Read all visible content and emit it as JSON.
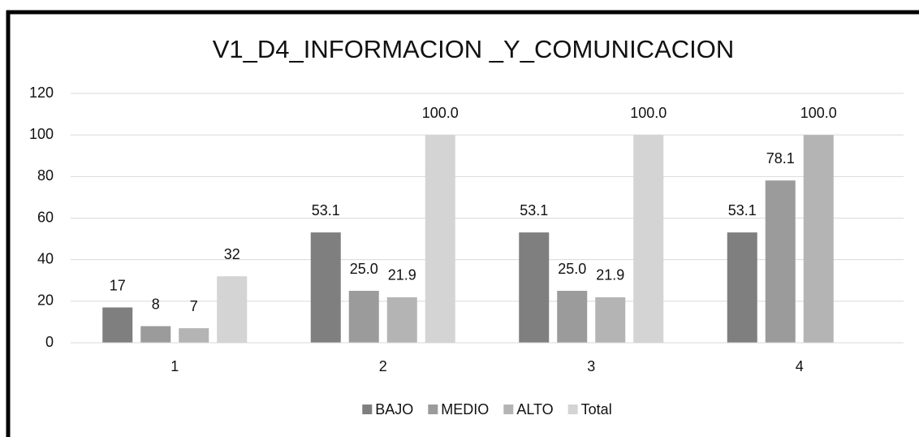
{
  "chart_data": {
    "type": "bar",
    "title": "V1_D4_INFORMACION _Y_COMUNICACION",
    "categories": [
      "1",
      "2",
      "3",
      "4"
    ],
    "series": [
      {
        "name": "BAJO",
        "color": "#7f7f7f",
        "values": [
          17,
          53.1,
          53.1,
          53.1
        ],
        "value_labels": [
          "17",
          "53.1",
          "53.1",
          "53.1"
        ]
      },
      {
        "name": "MEDIO",
        "color": "#9b9b9b",
        "values": [
          8,
          25,
          25,
          78.1
        ],
        "value_labels": [
          "8",
          "25.0",
          "25.0",
          "78.1"
        ]
      },
      {
        "name": "ALTO",
        "color": "#b4b4b4",
        "values": [
          7,
          21.9,
          21.9,
          100
        ],
        "value_labels": [
          "7",
          "21.9",
          "21.9",
          "100.0"
        ]
      },
      {
        "name": "Total",
        "color": "#d4d4d4",
        "values": [
          32,
          100,
          100,
          null
        ],
        "value_labels": [
          "32",
          "100.0",
          "100.0",
          null
        ]
      }
    ],
    "ylim": [
      0,
      120
    ],
    "yticks": [
      0,
      20,
      40,
      60,
      80,
      100,
      120
    ],
    "grid": true,
    "legend": "bottom"
  }
}
